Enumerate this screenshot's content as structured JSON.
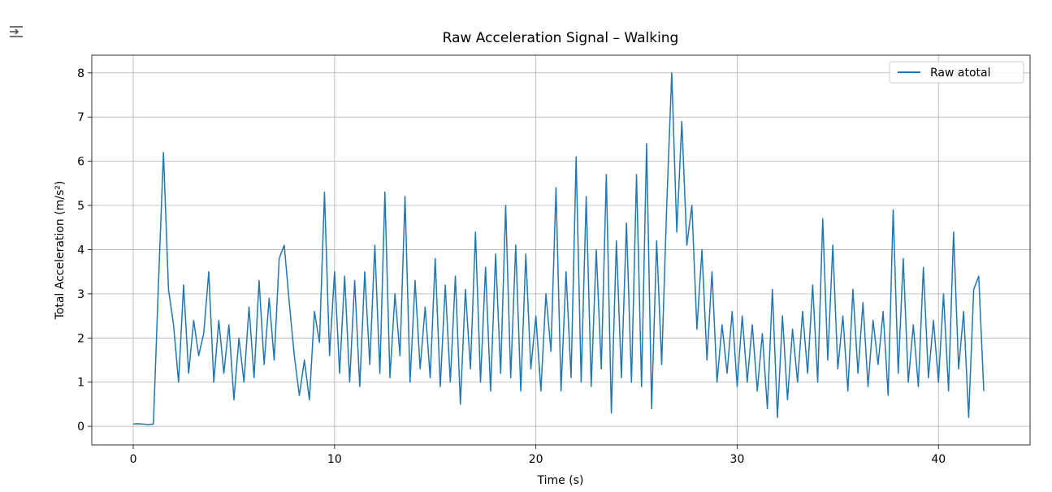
{
  "chart_data": {
    "type": "line",
    "title": "Raw Acceleration Signal – Walking",
    "x_label": "Time (s)",
    "y_label": "Total Acceleration (m/s²)",
    "x": [
      0,
      0.25,
      0.5,
      0.75,
      1,
      1.25,
      1.5,
      1.75,
      2,
      2.25,
      2.5,
      2.75,
      3,
      3.25,
      3.5,
      3.75,
      4,
      4.25,
      4.5,
      4.75,
      5,
      5.25,
      5.5,
      5.75,
      6,
      6.25,
      6.5,
      6.75,
      7,
      7.25,
      7.5,
      7.75,
      8,
      8.25,
      8.5,
      8.75,
      9,
      9.25,
      9.5,
      9.75,
      10,
      10.25,
      10.5,
      10.75,
      11,
      11.25,
      11.5,
      11.75,
      12,
      12.25,
      12.5,
      12.75,
      13,
      13.25,
      13.5,
      13.75,
      14,
      14.25,
      14.5,
      14.75,
      15,
      15.25,
      15.5,
      15.75,
      16,
      16.25,
      16.5,
      16.75,
      17,
      17.25,
      17.5,
      17.75,
      18,
      18.25,
      18.5,
      18.75,
      19,
      19.25,
      19.5,
      19.75,
      20,
      20.25,
      20.5,
      20.75,
      21,
      21.25,
      21.5,
      21.75,
      22,
      22.25,
      22.5,
      22.75,
      23,
      23.25,
      23.5,
      23.75,
      24,
      24.25,
      24.5,
      24.75,
      25,
      25.25,
      25.5,
      25.75,
      26,
      26.25,
      26.5,
      26.75,
      27,
      27.25,
      27.5,
      27.75,
      28,
      28.25,
      28.5,
      28.75,
      29,
      29.25,
      29.5,
      29.75,
      30,
      30.25,
      30.5,
      30.75,
      31,
      31.25,
      31.5,
      31.75,
      32,
      32.25,
      32.5,
      32.75,
      33,
      33.25,
      33.5,
      33.75,
      34,
      34.25,
      34.5,
      34.75,
      35,
      35.25,
      35.5,
      35.75,
      36,
      36.25,
      36.5,
      36.75,
      37,
      37.25,
      37.5,
      37.75,
      38,
      38.25,
      38.5,
      38.75,
      39,
      39.25,
      39.5,
      39.75,
      40,
      40.25,
      40.5,
      40.75,
      41,
      41.25,
      41.5,
      41.75,
      42,
      42.25
    ],
    "series": [
      {
        "name": "Raw atotal",
        "color": "#1f77b4",
        "values": [
          0.05,
          0.06,
          0.05,
          0.04,
          0.05,
          3.2,
          6.2,
          3.1,
          2.3,
          1.0,
          3.2,
          1.2,
          2.4,
          1.6,
          2.1,
          3.5,
          1.0,
          2.4,
          1.2,
          2.3,
          0.6,
          2.0,
          1.0,
          2.7,
          1.1,
          3.3,
          1.4,
          2.9,
          1.5,
          3.8,
          4.1,
          2.8,
          1.6,
          0.7,
          1.5,
          0.6,
          2.6,
          1.9,
          5.3,
          1.6,
          3.5,
          1.2,
          3.4,
          1.0,
          3.3,
          0.9,
          3.5,
          1.4,
          4.1,
          1.2,
          5.3,
          1.1,
          3.0,
          1.6,
          5.2,
          1.0,
          3.3,
          1.3,
          2.7,
          1.1,
          3.8,
          0.9,
          3.2,
          1.0,
          3.4,
          0.5,
          3.1,
          1.3,
          4.4,
          1.0,
          3.6,
          0.8,
          3.9,
          1.2,
          5.0,
          1.1,
          4.1,
          0.8,
          3.9,
          1.3,
          2.5,
          0.8,
          3.0,
          1.7,
          5.4,
          0.8,
          3.5,
          1.1,
          6.1,
          1.0,
          5.2,
          0.9,
          4.0,
          1.3,
          5.7,
          0.3,
          4.2,
          1.1,
          4.6,
          1.0,
          5.7,
          0.9,
          6.4,
          0.4,
          4.2,
          1.4,
          5.0,
          8.0,
          4.4,
          6.9,
          4.1,
          5.0,
          2.2,
          4.0,
          1.5,
          3.5,
          1.0,
          2.3,
          1.2,
          2.6,
          0.9,
          2.5,
          1.0,
          2.3,
          0.8,
          2.1,
          0.4,
          3.1,
          0.2,
          2.5,
          0.6,
          2.2,
          1.0,
          2.6,
          1.2,
          3.2,
          1.0,
          4.7,
          1.5,
          4.1,
          1.3,
          2.5,
          0.8,
          3.1,
          1.2,
          2.8,
          0.9,
          2.4,
          1.4,
          2.6,
          0.7,
          4.9,
          1.2,
          3.8,
          1.0,
          2.3,
          0.9,
          3.6,
          1.1,
          2.4,
          1.0,
          3.0,
          0.8,
          4.4,
          1.3,
          2.6,
          0.2,
          3.1,
          3.4,
          0.8
        ]
      }
    ],
    "xlim": [
      -2.06,
      44.55
    ],
    "ylim": [
      -0.42,
      8.4
    ],
    "xticks": [
      0,
      10,
      20,
      30,
      40
    ],
    "yticks": [
      0,
      1,
      2,
      3,
      4,
      5,
      6,
      7,
      8
    ],
    "grid": true,
    "legend": "upper right"
  }
}
